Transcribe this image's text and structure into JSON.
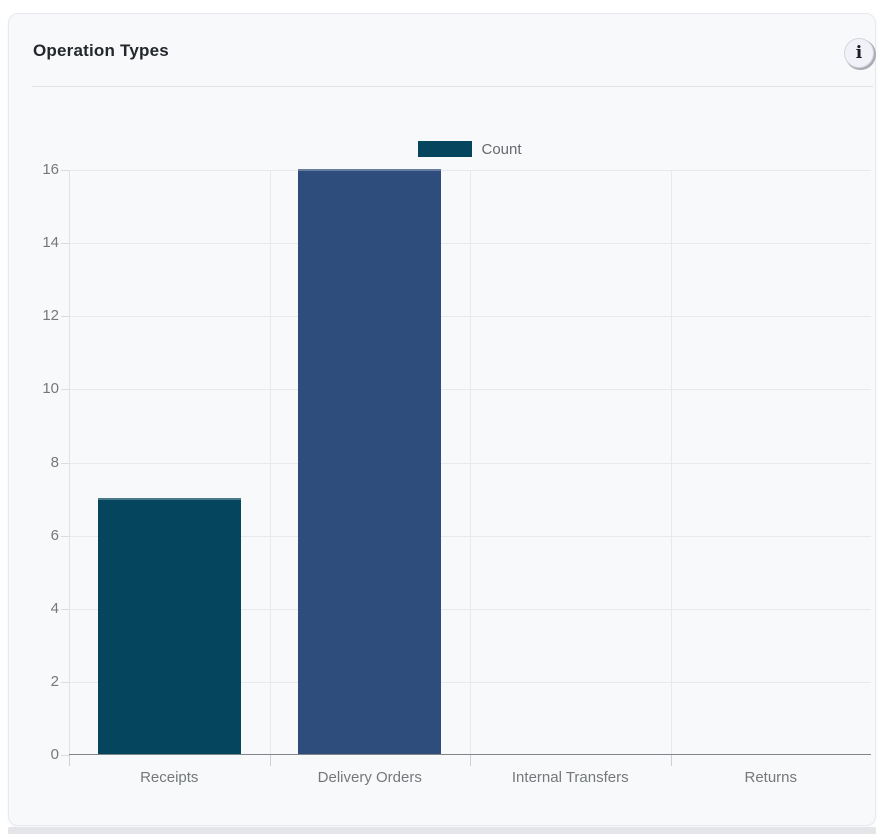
{
  "card": {
    "title": "Operation Types",
    "info_icon_glyph": "i"
  },
  "chart_data": {
    "type": "bar",
    "title": "Operation Types",
    "categories": [
      "Receipts",
      "Delivery Orders",
      "Internal Transfers",
      "Returns"
    ],
    "series": [
      {
        "name": "Count",
        "values": [
          7,
          16,
          0,
          0
        ]
      }
    ],
    "bar_colors": [
      "#05465e",
      "#2f4d7c",
      "#05465e",
      "#05465e"
    ],
    "legend": {
      "position": "top-center",
      "entries": [
        {
          "label": "Count",
          "color": "#05465e"
        }
      ]
    },
    "xlabel": "",
    "ylabel": "",
    "ylim": [
      0,
      16
    ],
    "yticks": [
      0,
      2,
      4,
      6,
      8,
      10,
      12,
      14,
      16
    ],
    "grid": true,
    "axis_text_color": "#75787b",
    "grid_color": "#e7e9eb",
    "axis_line_color": "#82858a"
  }
}
